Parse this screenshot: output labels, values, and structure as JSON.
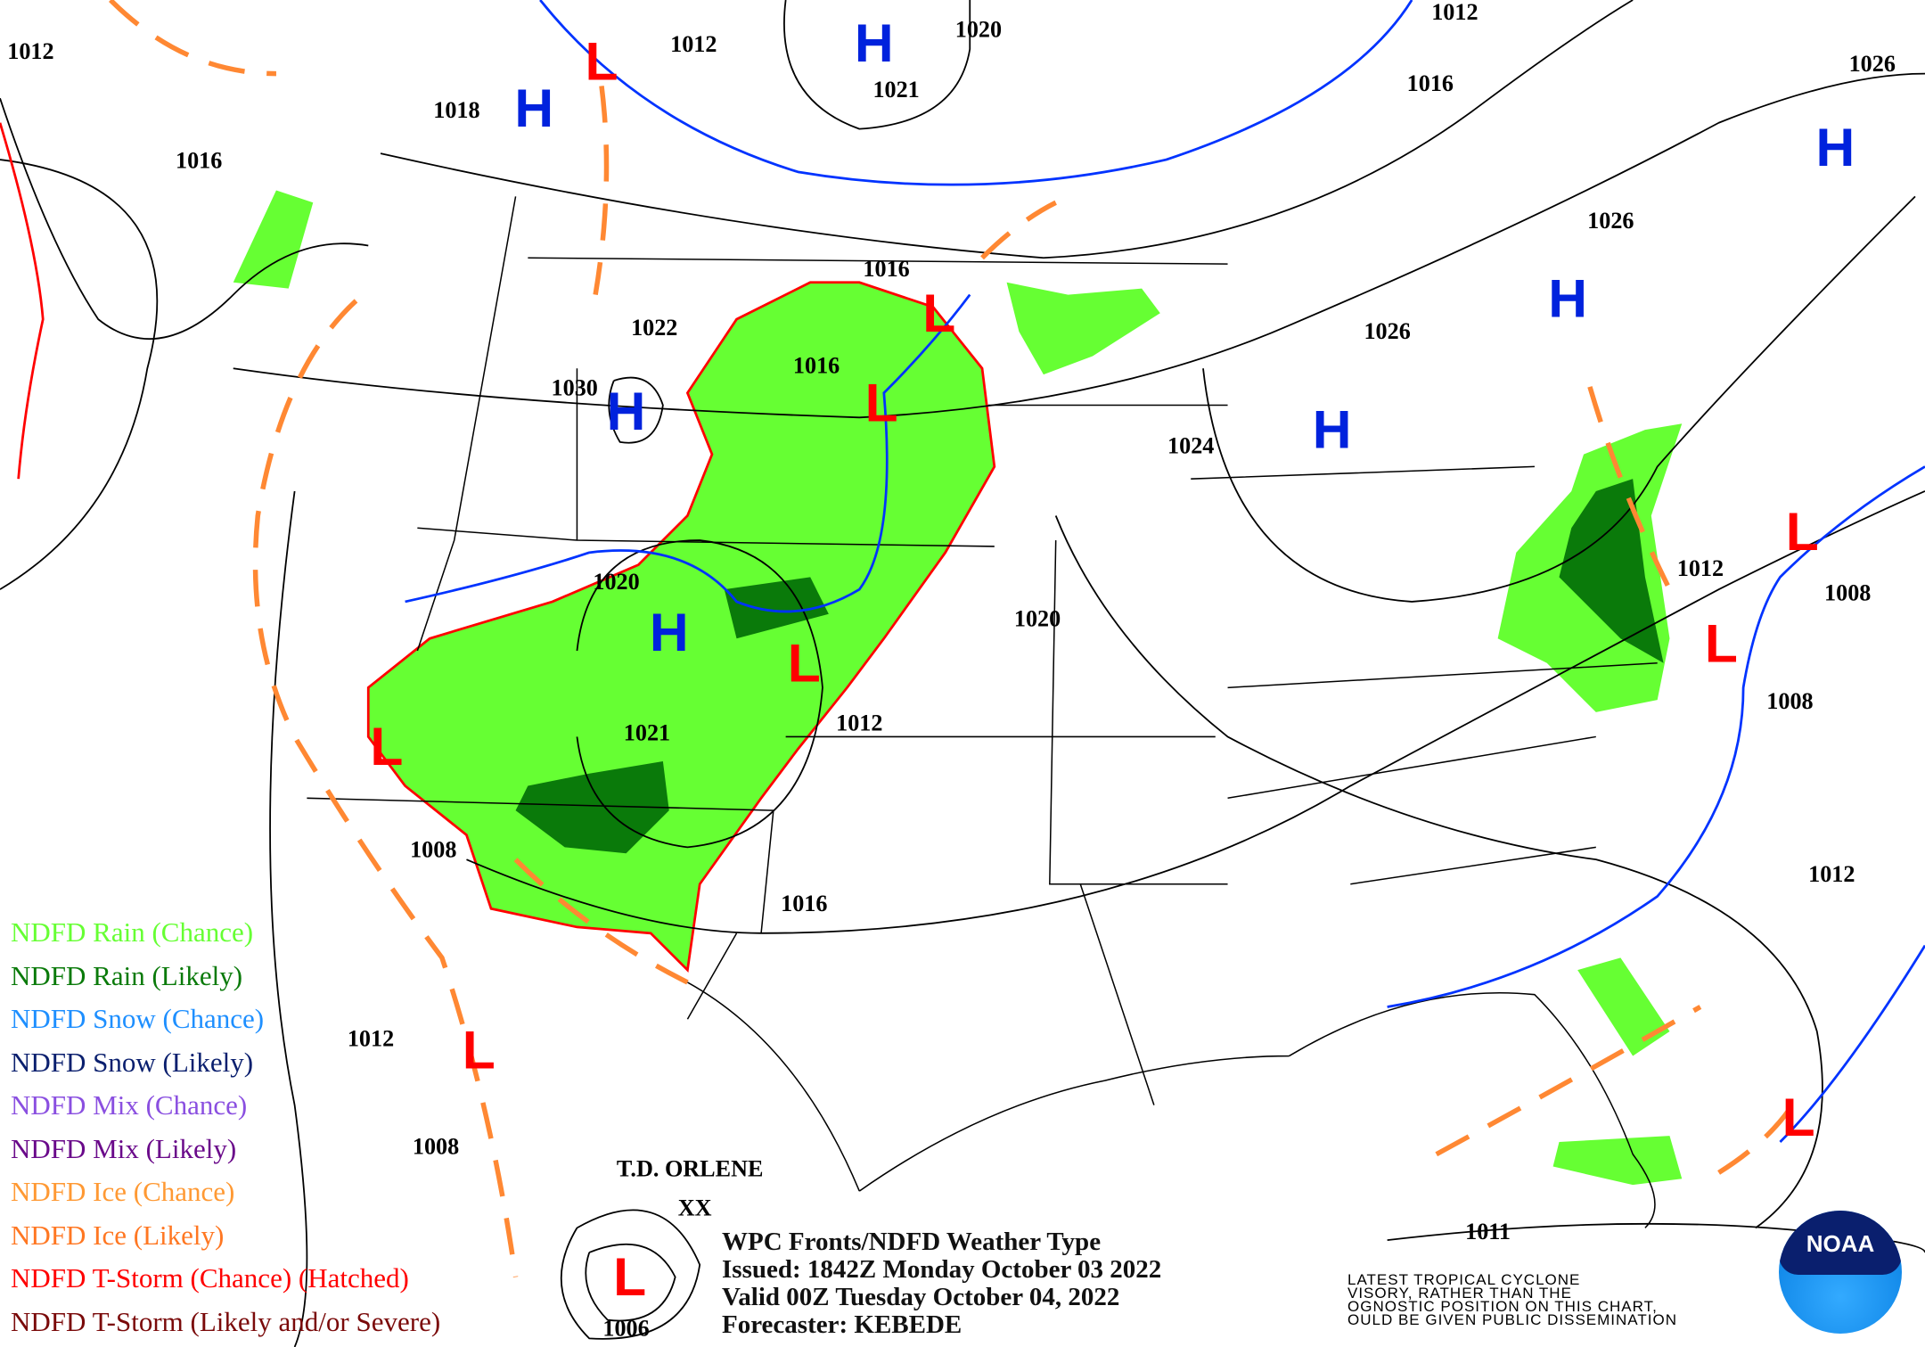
{
  "title_block": {
    "line1": "WPC Fronts/NDFD Weather Type",
    "line2": "Issued: 1842Z Monday October 03 2022",
    "line3": "Valid 00Z Tuesday October 04, 2022",
    "line4": "Forecaster: KEBEDE"
  },
  "legend": [
    {
      "label": "NDFD Rain (Chance)",
      "color": "#66ff33"
    },
    {
      "label": "NDFD Rain (Likely)",
      "color": "#0a7a0a"
    },
    {
      "label": "NDFD Snow (Chance)",
      "color": "#1e8fff"
    },
    {
      "label": "NDFD Snow (Likely)",
      "color": "#0a1f6e"
    },
    {
      "label": "NDFD Mix (Chance)",
      "color": "#8a4fe0"
    },
    {
      "label": "NDFD Mix (Likely)",
      "color": "#6a0a8a"
    },
    {
      "label": "NDFD Ice (Chance)",
      "color": "#ff9933"
    },
    {
      "label": "NDFD Ice (Likely)",
      "color": "#ff7722"
    },
    {
      "label": "NDFD T-Storm (Chance) (Hatched)",
      "color": "#ff0000"
    },
    {
      "label": "NDFD T-Storm (Likely and/or Severe)",
      "color": "#7a0a0a"
    }
  ],
  "tropical_note": [
    "LATEST TROPICAL CYCLONE",
    "VISORY, RATHER THAN THE",
    "OGNOSTIC POSITION ON THIS CHART,",
    "OULD BE GIVEN PUBLIC DISSEMINATION"
  ],
  "storm": {
    "name": "T.D. ORLENE",
    "marker": "XX"
  },
  "logo": "NOAA",
  "isobar_labels": [
    "1012",
    "1012",
    "1020",
    "1021",
    "1012",
    "1016",
    "1026",
    "1018",
    "1016",
    "1026",
    "1016",
    "1022",
    "1016",
    "1026",
    "1030",
    "1024",
    "1012",
    "1008",
    "1020",
    "1020",
    "1008",
    "1012",
    "1021",
    "1008",
    "1016",
    "1012",
    "1012",
    "1008",
    "1011",
    "1006"
  ],
  "highs": {
    "symbol": "H",
    "color": "#0022dd",
    "count": 7
  },
  "lows": {
    "symbol": "L",
    "color": "#ff0000",
    "count": 10
  },
  "colors": {
    "cold_front": "#0033ff",
    "warm_front": "#ff0000",
    "trough": "#ff8833",
    "isobar": "#000000",
    "tstorm_outline": "#ff0000"
  }
}
